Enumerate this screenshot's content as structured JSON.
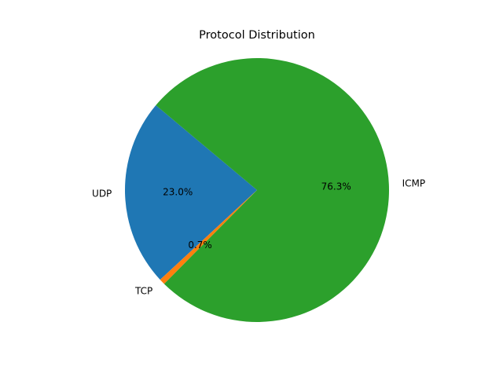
{
  "chart_data": {
    "type": "pie",
    "title": "Protocol Distribution",
    "categories": [
      "UDP",
      "TCP",
      "ICMP"
    ],
    "values": [
      23.0,
      0.7,
      76.3
    ],
    "percent_labels": [
      "23.0%",
      "0.7%",
      "76.3%"
    ],
    "colors": [
      "#1f77b4",
      "#ff7f0e",
      "#2ca02c"
    ],
    "start_angle_deg": 140,
    "direction": "counterclockwise",
    "legend": "none"
  }
}
